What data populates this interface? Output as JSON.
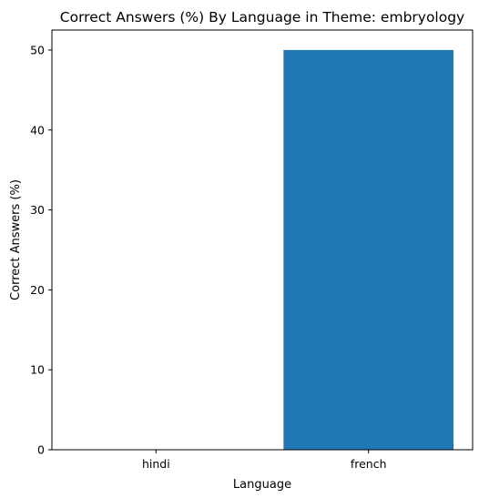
{
  "chart_data": {
    "type": "bar",
    "title": "Correct Answers (%) By Language in Theme: embryology",
    "xlabel": "Language",
    "ylabel": "Correct Answers (%)",
    "categories": [
      "hindi",
      "french"
    ],
    "values": [
      0,
      50
    ],
    "ylim": [
      0,
      52.5
    ],
    "yticks": [
      0,
      10,
      20,
      30,
      40,
      50
    ],
    "bar_color": "#1f77b4",
    "grid": false,
    "legend": "none"
  }
}
